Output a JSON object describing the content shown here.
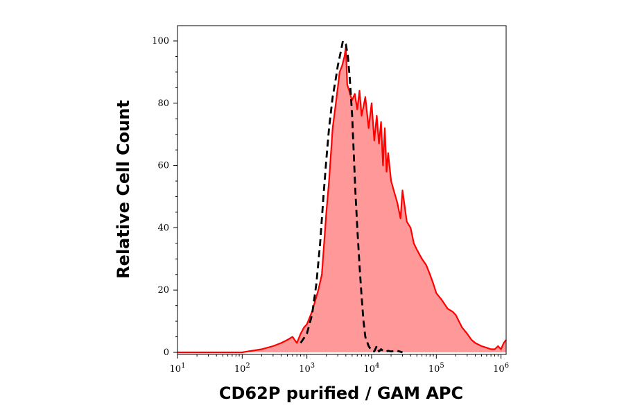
{
  "chart_data": {
    "type": "area",
    "title": "",
    "xlabel": "CD62P purified / GAM APC",
    "ylabel": "Relative Cell Count",
    "x_scale": "log",
    "xlim": [
      10,
      1200000
    ],
    "ylim": [
      0,
      100
    ],
    "x_ticks": [
      {
        "base": "10",
        "exp": "1",
        "value": 10
      },
      {
        "base": "10",
        "exp": "2",
        "value": 100
      },
      {
        "base": "10",
        "exp": "3",
        "value": 1000
      },
      {
        "base": "10",
        "exp": "4",
        "value": 10000
      },
      {
        "base": "10",
        "exp": "5",
        "value": 100000
      },
      {
        "base": "10",
        "exp": "6",
        "value": 1000000
      }
    ],
    "y_ticks": [
      "0",
      "20",
      "40",
      "60",
      "80",
      "100"
    ],
    "grid": false,
    "series": [
      {
        "style": "solid-filled",
        "color": "#ff0000",
        "fill": "#ff9999",
        "x": [
          10,
          100,
          200,
          300,
          400,
          500,
          600,
          700,
          800,
          900,
          1000,
          1200,
          1500,
          1700,
          2000,
          2200,
          2500,
          2800,
          3000,
          3200,
          3500,
          3800,
          4000,
          4200,
          4500,
          4800,
          5000,
          5500,
          6000,
          6500,
          7000,
          7500,
          8000,
          9000,
          10000,
          11000,
          12000,
          13000,
          14000,
          15000,
          16000,
          17000,
          18000,
          20000,
          22000,
          25000,
          28000,
          30000,
          35000,
          40000,
          45000,
          50000,
          60000,
          70000,
          80000,
          90000,
          100000,
          120000,
          150000,
          180000,
          200000,
          250000,
          300000,
          350000,
          400000,
          500000,
          600000,
          700000,
          800000,
          900000,
          1000000,
          1100000,
          1200000
        ],
        "y": [
          0,
          0,
          1,
          2,
          3,
          4,
          5,
          3,
          6,
          8,
          9,
          13,
          20,
          25,
          45,
          55,
          72,
          80,
          85,
          90,
          92,
          95,
          98,
          86,
          84,
          82,
          81,
          83,
          78,
          84,
          76,
          79,
          82,
          72,
          80,
          68,
          76,
          67,
          74,
          60,
          72,
          58,
          64,
          55,
          52,
          48,
          43,
          52,
          42,
          40,
          35,
          33,
          30,
          28,
          25,
          22,
          19,
          17,
          14,
          13,
          12,
          8,
          6,
          4,
          3,
          2,
          1.5,
          1,
          1,
          2,
          1,
          3,
          4
        ]
      },
      {
        "style": "dashed",
        "color": "#000000",
        "x": [
          800,
          1000,
          1200,
          1400,
          1600,
          1800,
          2000,
          2200,
          2500,
          2800,
          3000,
          3300,
          3600,
          4000,
          4300,
          4600,
          5000,
          5300,
          5600,
          6000,
          6500,
          7000,
          7500,
          8000,
          9000,
          10000,
          11000,
          12000,
          13000,
          14000,
          15000,
          16000,
          18000,
          20000,
          25000,
          30000
        ],
        "y": [
          3,
          6,
          12,
          22,
          35,
          50,
          62,
          72,
          82,
          88,
          92,
          96,
          100,
          99,
          95,
          88,
          76,
          64,
          52,
          40,
          28,
          18,
          10,
          5,
          2,
          0.5,
          0.3,
          2,
          0.3,
          1,
          0.5,
          0.2,
          0.5,
          0.3,
          0.5,
          0
        ]
      }
    ]
  }
}
